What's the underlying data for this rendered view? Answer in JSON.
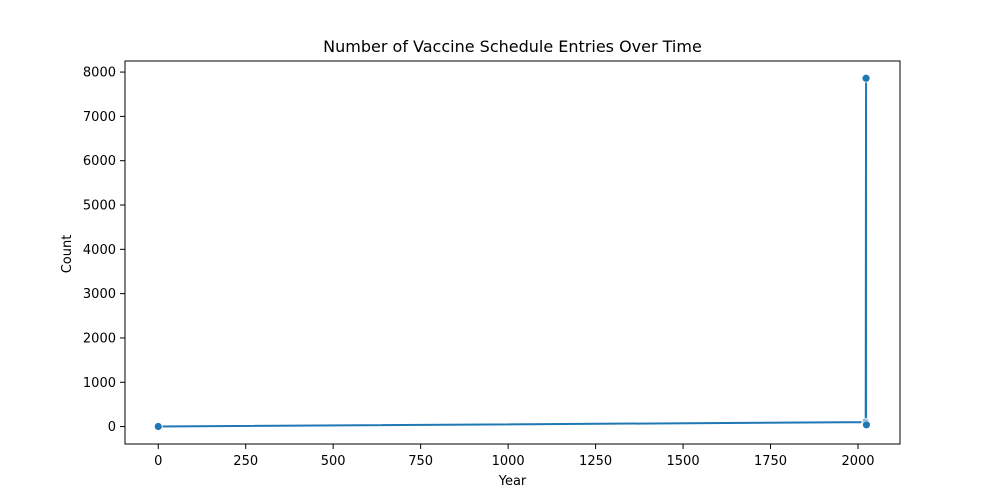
{
  "chart_data": {
    "type": "line",
    "title": "Number of Vaccine Schedule Entries Over Time",
    "xlabel": "Year",
    "ylabel": "Count",
    "xlim": [
      -95,
      2120
    ],
    "ylim": [
      -393,
      8250
    ],
    "xticks": [
      0,
      250,
      500,
      750,
      1000,
      1250,
      1500,
      1750,
      2000
    ],
    "yticks": [
      0,
      1000,
      2000,
      3000,
      4000,
      5000,
      6000,
      7000,
      8000
    ],
    "grid": false,
    "line_color": "#1f77b4",
    "series": [
      {
        "x": [
          0,
          2022,
          2023,
          2023,
          2024
        ],
        "y": [
          2,
          100,
          7860,
          70,
          40
        ],
        "marker": "circle"
      }
    ]
  }
}
